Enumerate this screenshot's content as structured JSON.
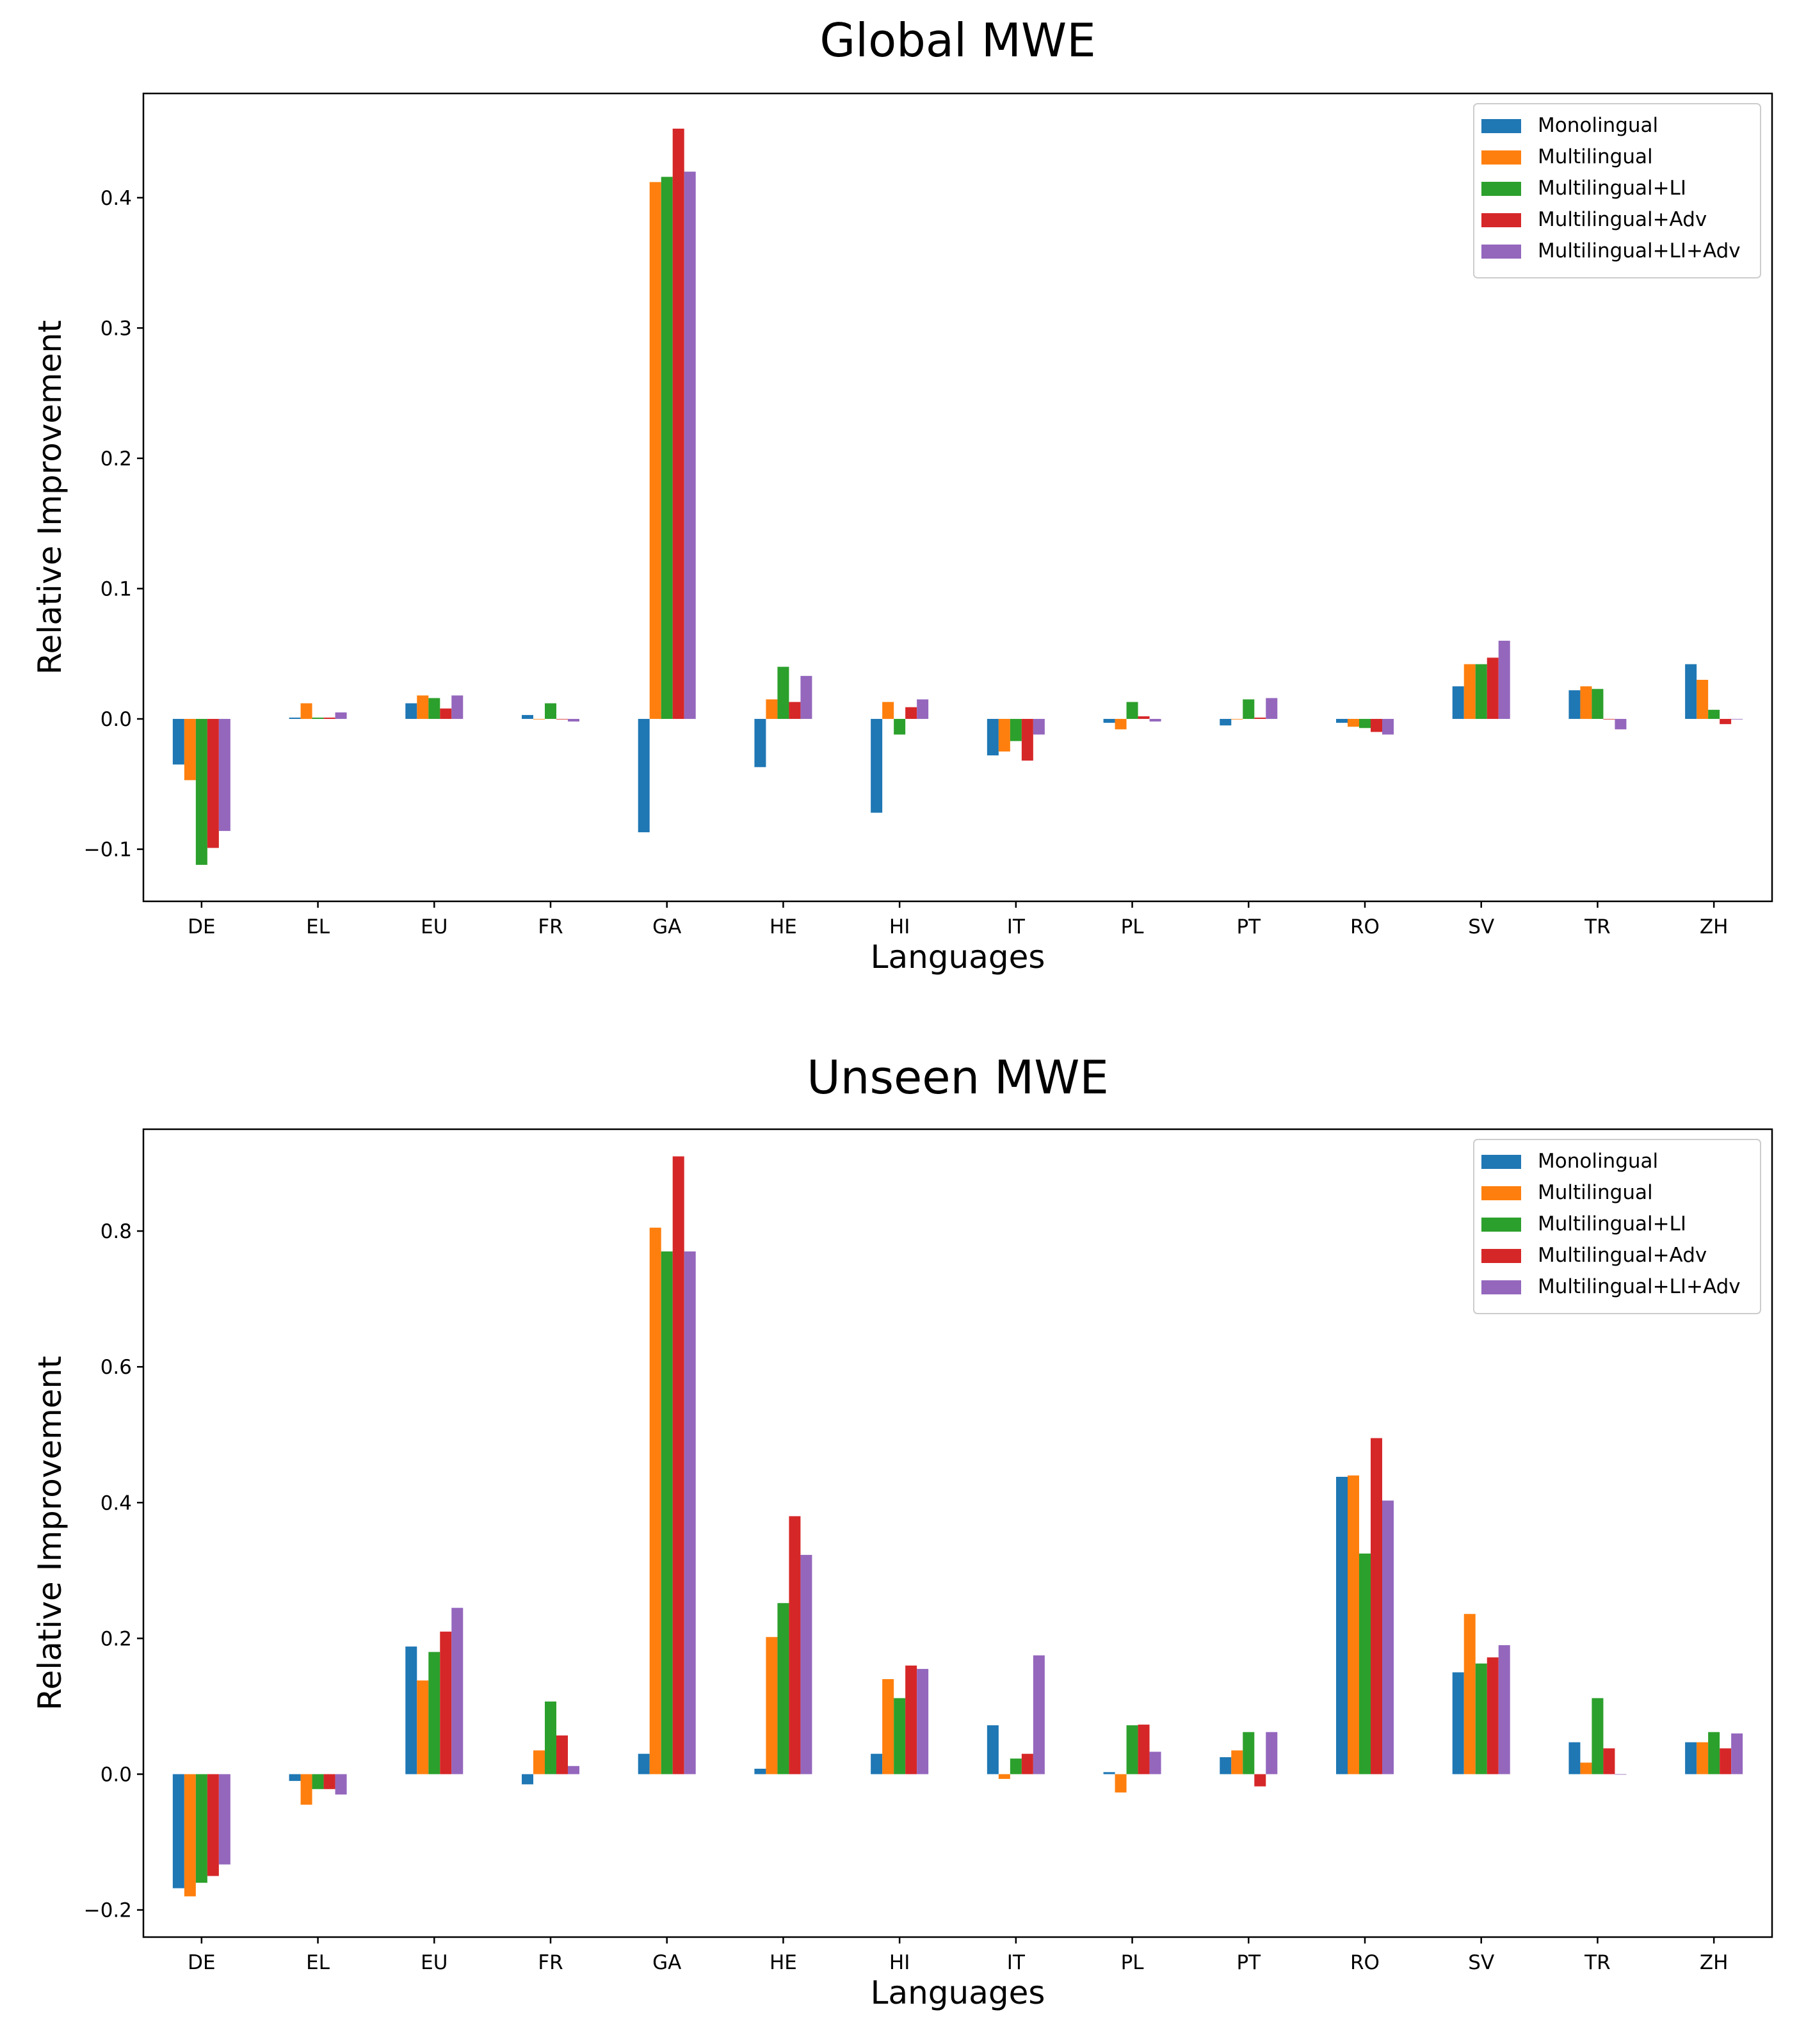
{
  "colors": {
    "Monolingual": "#1f77b4",
    "Multilingual": "#ff7f0e",
    "Multilingual+LI": "#2ca02c",
    "Multilingual+Adv": "#d62728",
    "Multilingual+LI+Adv": "#9467bd"
  },
  "chart_data": [
    {
      "type": "bar",
      "title": "Global MWE",
      "xlabel": "Languages",
      "ylabel": "Relative Improvement",
      "ylim": [
        -0.14,
        0.48
      ],
      "yticks": [
        -0.1,
        0.0,
        0.1,
        0.2,
        0.3,
        0.4
      ],
      "ytick_labels": [
        "−0.1",
        "0.0",
        "0.1",
        "0.2",
        "0.3",
        "0.4"
      ],
      "legend_position": "upper right",
      "categories": [
        "DE",
        "EL",
        "EU",
        "FR",
        "GA",
        "HE",
        "HI",
        "IT",
        "PL",
        "PT",
        "RO",
        "SV",
        "TR",
        "ZH"
      ],
      "series": [
        {
          "name": "Monolingual",
          "values": [
            -0.035,
            0.001,
            0.012,
            0.003,
            -0.087,
            -0.037,
            -0.072,
            -0.028,
            -0.003,
            -0.005,
            -0.003,
            0.025,
            0.022,
            0.042
          ]
        },
        {
          "name": "Multilingual",
          "values": [
            -0.047,
            0.012,
            0.018,
            0.0,
            0.412,
            0.015,
            0.013,
            -0.025,
            -0.008,
            0.0,
            -0.006,
            0.042,
            0.025,
            0.03
          ]
        },
        {
          "name": "Multilingual+LI",
          "values": [
            -0.112,
            0.001,
            0.016,
            0.012,
            0.416,
            0.04,
            -0.012,
            -0.017,
            0.013,
            0.015,
            -0.007,
            0.042,
            0.023,
            0.007
          ]
        },
        {
          "name": "Multilingual+Adv",
          "values": [
            -0.099,
            0.001,
            0.008,
            0.0,
            0.453,
            0.013,
            0.009,
            -0.032,
            0.002,
            0.001,
            -0.01,
            0.047,
            0.0,
            -0.004
          ]
        },
        {
          "name": "Multilingual+LI+Adv",
          "values": [
            -0.086,
            0.005,
            0.018,
            -0.002,
            0.42,
            0.033,
            0.015,
            -0.012,
            -0.002,
            0.016,
            -0.012,
            0.06,
            -0.008,
            0.0
          ]
        }
      ]
    },
    {
      "type": "bar",
      "title": "Unseen MWE",
      "xlabel": "Languages",
      "ylabel": "Relative Improvement",
      "ylim": [
        -0.24,
        0.95
      ],
      "yticks": [
        -0.2,
        0.0,
        0.2,
        0.4,
        0.6,
        0.8
      ],
      "ytick_labels": [
        "−0.2",
        "0.0",
        "0.2",
        "0.4",
        "0.6",
        "0.8"
      ],
      "legend_position": "upper right",
      "categories": [
        "DE",
        "EL",
        "EU",
        "FR",
        "GA",
        "HE",
        "HI",
        "IT",
        "PL",
        "PT",
        "RO",
        "SV",
        "TR",
        "ZH"
      ],
      "series": [
        {
          "name": "Monolingual",
          "values": [
            -0.168,
            -0.01,
            0.188,
            -0.015,
            0.03,
            0.008,
            0.03,
            0.072,
            0.003,
            0.025,
            0.438,
            0.15,
            0.047,
            0.047
          ]
        },
        {
          "name": "Multilingual",
          "values": [
            -0.18,
            -0.045,
            0.138,
            0.035,
            0.805,
            0.202,
            0.14,
            -0.007,
            -0.027,
            0.035,
            0.44,
            0.236,
            0.017,
            0.047
          ]
        },
        {
          "name": "Multilingual+LI",
          "values": [
            -0.16,
            -0.022,
            0.18,
            0.107,
            0.77,
            0.252,
            0.112,
            0.023,
            0.072,
            0.062,
            0.325,
            0.163,
            0.112,
            0.062
          ]
        },
        {
          "name": "Multilingual+Adv",
          "values": [
            -0.15,
            -0.022,
            0.21,
            0.057,
            0.91,
            0.38,
            0.16,
            0.03,
            0.073,
            -0.018,
            0.495,
            0.172,
            0.038,
            0.038
          ]
        },
        {
          "name": "Multilingual+LI+Adv",
          "values": [
            -0.133,
            -0.03,
            0.245,
            0.012,
            0.77,
            0.323,
            0.155,
            0.175,
            0.033,
            0.062,
            0.403,
            0.19,
            0.0,
            0.06
          ]
        }
      ]
    }
  ]
}
